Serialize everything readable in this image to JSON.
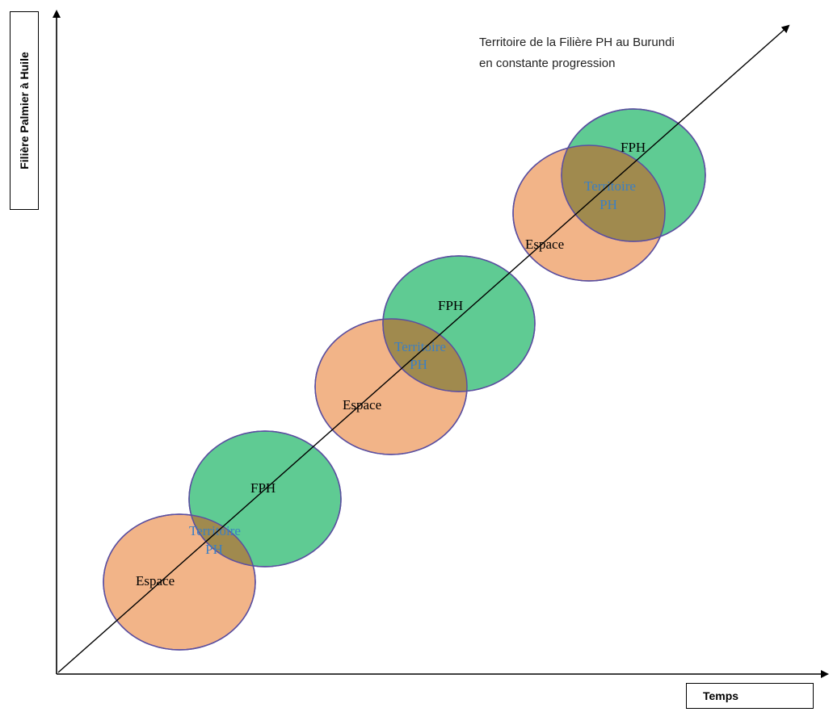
{
  "diagram": {
    "y_axis_label": "Filière Palmier à Huile",
    "x_axis_label": "Temps",
    "annotation": [
      "Territoire de la Filière PH au Burundi",
      "en constante progression"
    ],
    "stages": [
      {
        "espace_label": "Espace",
        "fph_label": "FPH",
        "overlap_label_line1": "Territoire",
        "overlap_label_line2": "PH"
      },
      {
        "espace_label": "Espace",
        "fph_label": "FPH",
        "overlap_label_line1": "Territoire",
        "overlap_label_line2": "PH"
      },
      {
        "espace_label": "Espace",
        "fph_label": "FPH",
        "overlap_label_line1": "Territoire",
        "overlap_label_line2": "PH"
      }
    ],
    "colors": {
      "espace_fill": "#f2b488",
      "fph_fill": "#5fcb93",
      "overlap_fill": "#a08a4e",
      "circle_stroke": "#5b4fa0",
      "territoire_text": "#3b7fc4",
      "axis": "#000000"
    }
  }
}
